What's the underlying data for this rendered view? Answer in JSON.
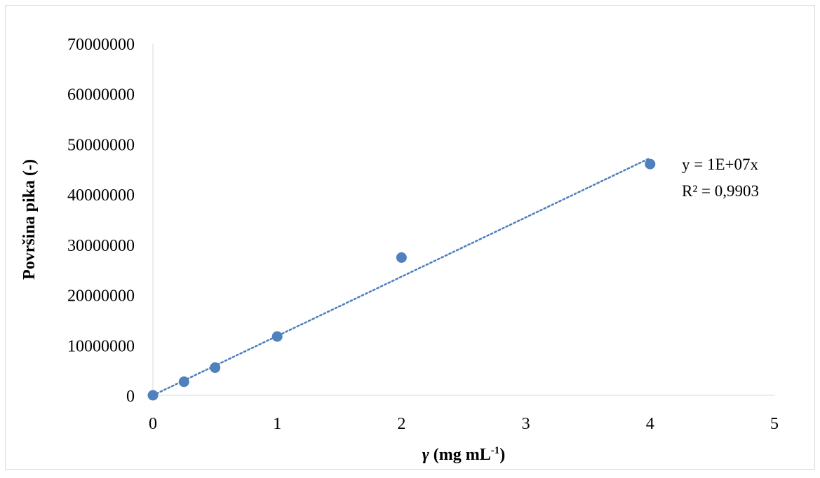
{
  "chart_data": {
    "type": "scatter",
    "title": "",
    "xlabel": "γ (mg mL-1)",
    "xlabel_parts": {
      "symbol": "γ",
      "text": " (mg mL",
      "sup": "-1",
      "close": ")"
    },
    "ylabel": "Površina pika (-)",
    "xlim": [
      0,
      5
    ],
    "ylim": [
      0,
      70000000
    ],
    "x_ticks": [
      "0",
      "1",
      "2",
      "3",
      "4",
      "5"
    ],
    "y_ticks": [
      "0",
      "10000000",
      "20000000",
      "30000000",
      "40000000",
      "50000000",
      "60000000",
      "70000000"
    ],
    "grid": false,
    "series": [
      {
        "x": [
          0,
          0.25,
          0.5,
          1,
          2,
          4
        ],
        "y": [
          0,
          2700000,
          5500000,
          11700000,
          27400000,
          46000000
        ],
        "marker_color": "#4f81bd"
      }
    ],
    "trendline": {
      "type": "linear-through-origin",
      "slope": 11800000,
      "x_range": [
        0,
        4
      ],
      "style": "dotted",
      "color": "#4a7ebb",
      "equation": "y = 1E+07x",
      "r_squared": "R² = 0,9903"
    }
  }
}
